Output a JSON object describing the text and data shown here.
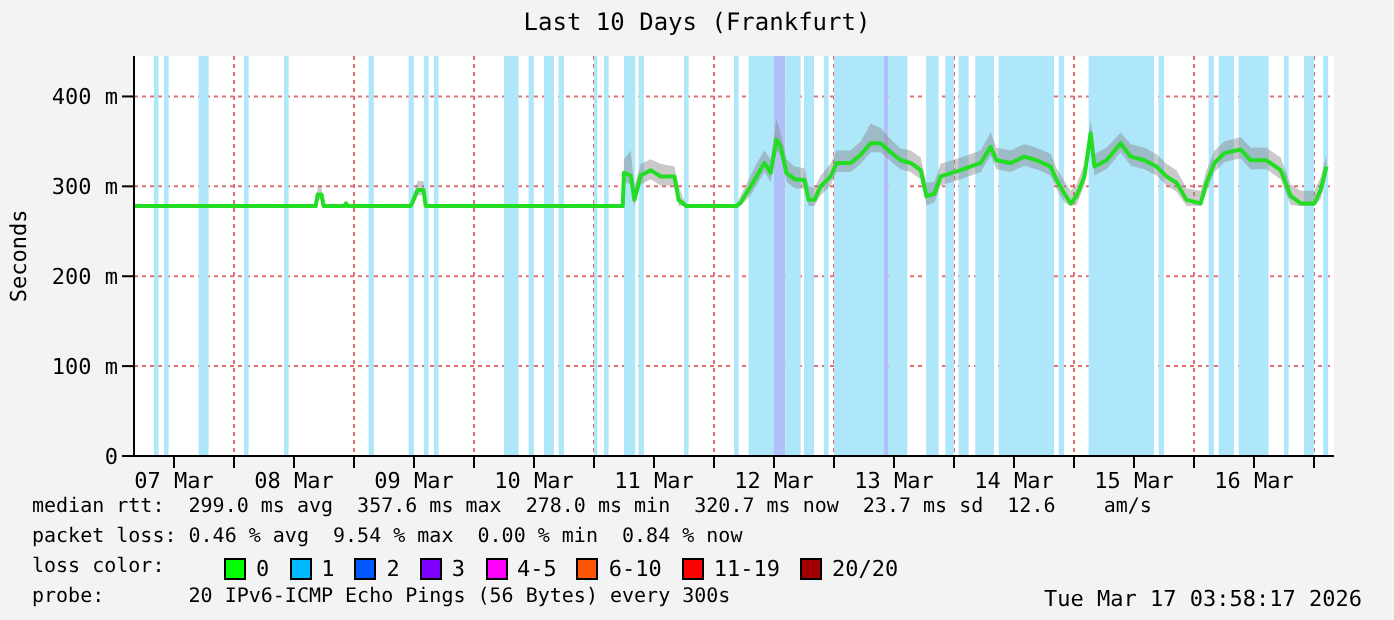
{
  "chart_data": {
    "type": "line",
    "title": "Last 10 Days (Frankfurt)",
    "ylabel": "Seconds",
    "xlim": [
      "2026-03-07T04:00",
      "2026-03-17T04:00"
    ],
    "xticks": [
      {
        "value": "2026-03-07T12:00",
        "label": "07 Mar"
      },
      {
        "value": "2026-03-08T00:00",
        "label": null
      },
      {
        "value": "2026-03-08T12:00",
        "label": "08 Mar"
      },
      {
        "value": "2026-03-09T00:00",
        "label": null
      },
      {
        "value": "2026-03-09T12:00",
        "label": "09 Mar"
      },
      {
        "value": "2026-03-10T00:00",
        "label": null
      },
      {
        "value": "2026-03-10T12:00",
        "label": "10 Mar"
      },
      {
        "value": "2026-03-11T00:00",
        "label": null
      },
      {
        "value": "2026-03-11T12:00",
        "label": "11 Mar"
      },
      {
        "value": "2026-03-12T00:00",
        "label": null
      },
      {
        "value": "2026-03-12T12:00",
        "label": "12 Mar"
      },
      {
        "value": "2026-03-13T00:00",
        "label": null
      },
      {
        "value": "2026-03-13T12:00",
        "label": "13 Mar"
      },
      {
        "value": "2026-03-14T00:00",
        "label": null
      },
      {
        "value": "2026-03-14T12:00",
        "label": "14 Mar"
      },
      {
        "value": "2026-03-15T00:00",
        "label": null
      },
      {
        "value": "2026-03-15T12:00",
        "label": "15 Mar"
      },
      {
        "value": "2026-03-16T00:00",
        "label": null
      },
      {
        "value": "2026-03-16T12:00",
        "label": "16 Mar"
      },
      {
        "value": "2026-03-17T00:00",
        "label": null
      }
    ],
    "ylim": [
      0,
      445
    ],
    "yticks": [
      0,
      {
        "value": 100,
        "label": "100 m"
      },
      {
        "value": 200,
        "label": "200 m"
      },
      {
        "value": 300,
        "label": "300 m"
      },
      {
        "value": 400,
        "label": "400 m"
      }
    ],
    "grid": true,
    "x": [
      "2026-03-07T04:00",
      "2026-03-08T16:20",
      "2026-03-08T16:45",
      "2026-03-08T17:30",
      "2026-03-08T17:55",
      "2026-03-08T22:05",
      "2026-03-08T22:25",
      "2026-03-08T22:45",
      "2026-03-09T11:20",
      "2026-03-09T11:45",
      "2026-03-09T12:45",
      "2026-03-09T13:55",
      "2026-03-09T14:20",
      "2026-03-11T05:45",
      "2026-03-11T06:00",
      "2026-03-11T07:20",
      "2026-03-11T08:05",
      "2026-03-11T09:20",
      "2026-03-11T11:20",
      "2026-03-11T13:20",
      "2026-03-11T16:05",
      "2026-03-11T16:55",
      "2026-03-11T18:30",
      "2026-03-12T04:30",
      "2026-03-12T05:20",
      "2026-03-12T07:20",
      "2026-03-12T08:30",
      "2026-03-12T10:05",
      "2026-03-12T11:20",
      "2026-03-12T12:30",
      "2026-03-12T13:20",
      "2026-03-12T14:30",
      "2026-03-12T16:05",
      "2026-03-12T18:05",
      "2026-03-12T18:55",
      "2026-03-12T20:05",
      "2026-03-12T21:20",
      "2026-03-12T23:20",
      "2026-03-13T00:30",
      "2026-03-13T03:20",
      "2026-03-13T05:20",
      "2026-03-13T07:20",
      "2026-03-13T09:20",
      "2026-03-13T11:20",
      "2026-03-13T13:20",
      "2026-03-13T15:20",
      "2026-03-13T17:20",
      "2026-03-13T18:30",
      "2026-03-13T20:05",
      "2026-03-13T21:20",
      "2026-03-14T01:20",
      "2026-03-14T05:20",
      "2026-03-14T07:20",
      "2026-03-14T08:30",
      "2026-03-14T11:20",
      "2026-03-14T14:05",
      "2026-03-14T16:30",
      "2026-03-14T19:20",
      "2026-03-14T20:30",
      "2026-03-14T22:05",
      "2026-03-14T23:20",
      "2026-03-15T00:30",
      "2026-03-15T02:05",
      "2026-03-15T03:20",
      "2026-03-15T04:05",
      "2026-03-15T06:30",
      "2026-03-15T09:20",
      "2026-03-15T11:20",
      "2026-03-15T14:05",
      "2026-03-15T16:30",
      "2026-03-15T18:30",
      "2026-03-15T20:30",
      "2026-03-15T22:30",
      "2026-03-16T01:20",
      "2026-03-16T02:30",
      "2026-03-16T04:05",
      "2026-03-16T06:05",
      "2026-03-16T09:20",
      "2026-03-16T11:20",
      "2026-03-16T14:30",
      "2026-03-16T17:20",
      "2026-03-16T19:20",
      "2026-03-16T21:20",
      "2026-03-17T00:05",
      "2026-03-17T01:20",
      "2026-03-17T02:30"
    ],
    "series": [
      {
        "color": "#22dd22",
        "values": [
          278,
          278,
          291,
          291,
          278,
          278,
          281,
          278,
          278,
          283,
          296,
          296,
          278,
          278,
          315,
          312,
          285,
          312,
          318,
          311,
          311,
          285,
          278,
          278,
          282,
          300,
          311,
          326,
          315,
          352,
          344,
          315,
          308,
          307,
          285,
          285,
          300,
          311,
          326,
          326,
          335,
          348,
          348,
          338,
          329,
          326,
          318,
          289,
          292,
          311,
          318,
          326,
          344,
          329,
          326,
          333,
          329,
          322,
          307,
          292,
          281,
          289,
          311,
          359,
          322,
          329,
          348,
          333,
          329,
          322,
          311,
          304,
          285,
          281,
          304,
          326,
          337,
          341,
          329,
          329,
          318,
          289,
          281,
          281,
          296,
          322
        ],
        "lower": [
          278,
          278,
          285,
          285,
          278,
          278,
          278,
          278,
          278,
          278,
          290,
          290,
          278,
          278,
          305,
          302,
          278,
          302,
          308,
          301,
          301,
          278,
          278,
          278,
          278,
          290,
          301,
          316,
          305,
          340,
          334,
          305,
          298,
          297,
          278,
          278,
          290,
          301,
          316,
          316,
          325,
          338,
          338,
          328,
          319,
          316,
          308,
          279,
          282,
          301,
          308,
          316,
          334,
          319,
          316,
          323,
          319,
          312,
          297,
          282,
          278,
          279,
          301,
          345,
          312,
          319,
          338,
          323,
          319,
          312,
          301,
          294,
          278,
          278,
          294,
          316,
          327,
          331,
          319,
          319,
          308,
          279,
          278,
          278,
          286,
          312
        ],
        "upper": [
          278,
          278,
          300,
          300,
          278,
          278,
          284,
          278,
          278,
          290,
          306,
          306,
          278,
          278,
          330,
          340,
          300,
          325,
          330,
          325,
          322,
          300,
          278,
          278,
          290,
          312,
          325,
          340,
          330,
          375,
          360,
          330,
          322,
          320,
          300,
          298,
          312,
          325,
          340,
          340,
          350,
          370,
          365,
          352,
          342,
          340,
          332,
          304,
          305,
          325,
          332,
          340,
          360,
          343,
          340,
          347,
          343,
          336,
          320,
          306,
          295,
          302,
          325,
          375,
          336,
          343,
          360,
          347,
          343,
          336,
          325,
          318,
          298,
          295,
          318,
          340,
          350,
          355,
          343,
          343,
          332,
          302,
          295,
          295,
          310,
          335
        ]
      }
    ],
    "bands": [
      {
        "axis": "x",
        "from": "2026-03-07T08:00",
        "to": "2026-03-07T08:55",
        "color": "#aee6fa"
      },
      {
        "axis": "x",
        "from": "2026-03-07T10:00",
        "to": "2026-03-07T10:55",
        "color": "#aee6fa"
      },
      {
        "axis": "x",
        "from": "2026-03-07T16:55",
        "to": "2026-03-07T18:55",
        "color": "#aee6fa"
      },
      {
        "axis": "x",
        "from": "2026-03-08T02:00",
        "to": "2026-03-08T02:55",
        "color": "#aee6fa"
      },
      {
        "axis": "x",
        "from": "2026-03-08T10:00",
        "to": "2026-03-08T10:55",
        "color": "#aee6fa"
      },
      {
        "axis": "x",
        "from": "2026-03-09T02:55",
        "to": "2026-03-09T04:00",
        "color": "#aee6fa"
      },
      {
        "axis": "x",
        "from": "2026-03-09T10:55",
        "to": "2026-03-09T12:00",
        "color": "#aee6fa"
      },
      {
        "axis": "x",
        "from": "2026-03-09T14:00",
        "to": "2026-03-09T14:55",
        "color": "#aee6fa"
      },
      {
        "axis": "x",
        "from": "2026-03-09T16:00",
        "to": "2026-03-09T16:55",
        "color": "#aee6fa"
      },
      {
        "axis": "x",
        "from": "2026-03-10T06:00",
        "to": "2026-03-10T08:55",
        "color": "#aee6fa"
      },
      {
        "axis": "x",
        "from": "2026-03-10T10:55",
        "to": "2026-03-10T12:00",
        "color": "#aee6fa"
      },
      {
        "axis": "x",
        "from": "2026-03-10T14:00",
        "to": "2026-03-10T16:00",
        "color": "#aee6fa"
      },
      {
        "axis": "x",
        "from": "2026-03-10T16:55",
        "to": "2026-03-10T18:00",
        "color": "#aee6fa"
      },
      {
        "axis": "x",
        "from": "2026-03-11T00:00",
        "to": "2026-03-11T00:40",
        "color": "#aee6fa"
      },
      {
        "axis": "x",
        "from": "2026-03-11T02:00",
        "to": "2026-03-11T02:55",
        "color": "#aee6fa"
      },
      {
        "axis": "x",
        "from": "2026-03-11T06:00",
        "to": "2026-03-11T08:15",
        "color": "#aee6fa"
      },
      {
        "axis": "x",
        "from": "2026-03-11T08:55",
        "to": "2026-03-11T10:00",
        "color": "#aee6fa"
      },
      {
        "axis": "x",
        "from": "2026-03-11T18:00",
        "to": "2026-03-11T18:55",
        "color": "#aee6fa"
      },
      {
        "axis": "x",
        "from": "2026-03-12T04:00",
        "to": "2026-03-12T04:55",
        "color": "#aee6fa"
      },
      {
        "axis": "x",
        "from": "2026-03-12T06:55",
        "to": "2026-03-12T12:00",
        "color": "#aee6fa"
      },
      {
        "axis": "x",
        "from": "2026-03-12T12:00",
        "to": "2026-03-12T14:15",
        "color": "#b0c0f8"
      },
      {
        "axis": "x",
        "from": "2026-03-12T14:15",
        "to": "2026-03-12T17:20",
        "color": "#aee6fa"
      },
      {
        "axis": "x",
        "from": "2026-03-12T18:00",
        "to": "2026-03-12T20:00",
        "color": "#aee6fa"
      },
      {
        "axis": "x",
        "from": "2026-03-12T22:00",
        "to": "2026-03-12T22:55",
        "color": "#aee6fa"
      },
      {
        "axis": "x",
        "from": "2026-03-13T00:00",
        "to": "2026-03-13T10:00",
        "color": "#aee6fa"
      },
      {
        "axis": "x",
        "from": "2026-03-13T10:00",
        "to": "2026-03-13T10:55",
        "color": "#b0c0f8"
      },
      {
        "axis": "x",
        "from": "2026-03-13T10:55",
        "to": "2026-03-13T14:40",
        "color": "#aee6fa"
      },
      {
        "axis": "x",
        "from": "2026-03-13T18:25",
        "to": "2026-03-13T20:55",
        "color": "#aee6fa"
      },
      {
        "axis": "x",
        "from": "2026-03-13T22:15",
        "to": "2026-03-14T00:00",
        "color": "#aee6fa"
      },
      {
        "axis": "x",
        "from": "2026-03-14T00:55",
        "to": "2026-03-14T02:55",
        "color": "#aee6fa"
      },
      {
        "axis": "x",
        "from": "2026-03-14T04:15",
        "to": "2026-03-14T08:00",
        "color": "#aee6fa"
      },
      {
        "axis": "x",
        "from": "2026-03-14T08:55",
        "to": "2026-03-14T20:00",
        "color": "#aee6fa"
      },
      {
        "axis": "x",
        "from": "2026-03-14T20:55",
        "to": "2026-03-14T22:00",
        "color": "#aee6fa"
      },
      {
        "axis": "x",
        "from": "2026-03-15T02:55",
        "to": "2026-03-15T16:00",
        "color": "#aee6fa"
      },
      {
        "axis": "x",
        "from": "2026-03-15T16:55",
        "to": "2026-03-15T18:00",
        "color": "#aee6fa"
      },
      {
        "axis": "x",
        "from": "2026-03-16T02:55",
        "to": "2026-03-16T04:00",
        "color": "#aee6fa"
      },
      {
        "axis": "x",
        "from": "2026-03-16T04:55",
        "to": "2026-03-16T08:00",
        "color": "#aee6fa"
      },
      {
        "axis": "x",
        "from": "2026-03-16T08:55",
        "to": "2026-03-16T14:55",
        "color": "#aee6fa"
      },
      {
        "axis": "x",
        "from": "2026-03-16T18:00",
        "to": "2026-03-16T18:55",
        "color": "#aee6fa"
      },
      {
        "axis": "x",
        "from": "2026-03-16T22:00",
        "to": "2026-03-17T00:00",
        "color": "#aee6fa"
      },
      {
        "axis": "x",
        "from": "2026-03-17T01:50",
        "to": "2026-03-17T02:50",
        "color": "#aee6fa"
      }
    ],
    "annotations": [
      "median rtt:  299.0 ms avg  357.6 ms max  278.0 ms min  320.7 ms now  23.7 ms sd  12.6    am/s",
      "packet loss: 0.46 % avg  9.54 % max  0.00 % min  0.84 % now",
      "loss color:",
      "0",
      "1",
      "2",
      "3",
      "4-5",
      "6-10",
      "11-19",
      "20/20",
      "probe:       20 IPv6-ICMP Echo Pings (56 Bytes) every 300s",
      "Tue Mar 17 03:58:17 2026"
    ]
  }
}
